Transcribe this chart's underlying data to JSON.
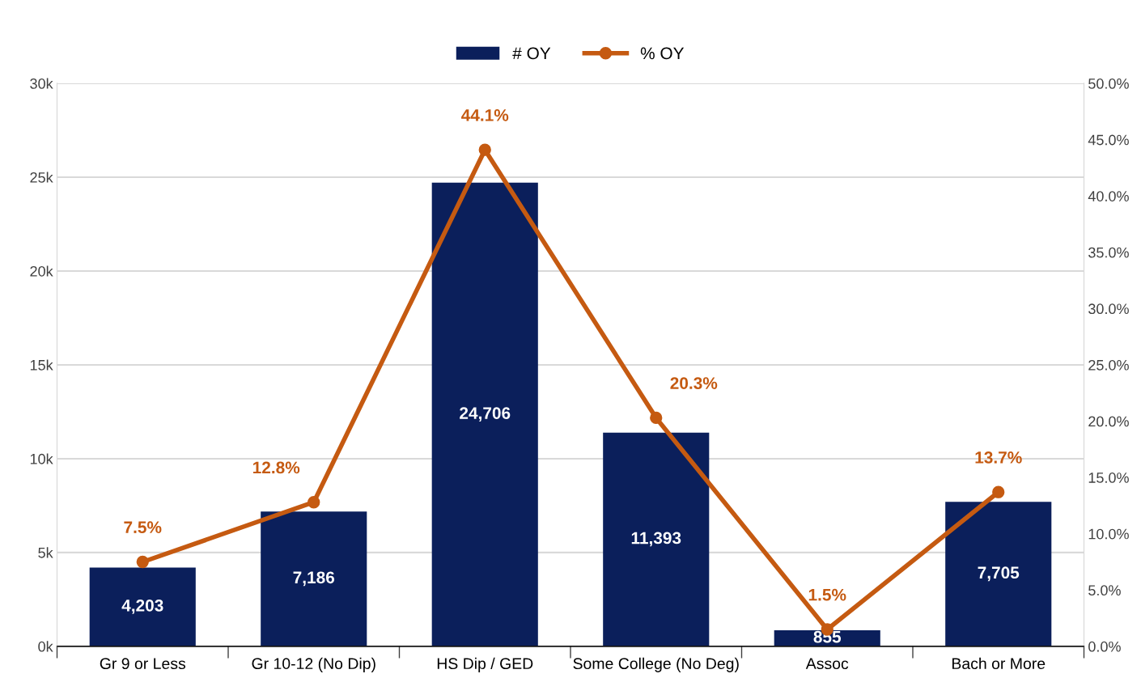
{
  "chart_data": {
    "type": "bar",
    "categories": [
      "Gr 9 or Less",
      "Gr 10-12 (No Dip)",
      "HS Dip / GED",
      "Some College (No Deg)",
      "Assoc",
      "Bach or More"
    ],
    "series": [
      {
        "name": "# OY",
        "color": "#0b1f5b",
        "values": [
          4203,
          7186,
          24706,
          11393,
          855,
          7705
        ],
        "value_labels": [
          "4,203",
          "7,186",
          "24,706",
          "11,393",
          "855",
          "7,705"
        ]
      },
      {
        "name": "% OY",
        "type": "line",
        "axis": "y2",
        "color": "#c55a11",
        "marker": "circle",
        "values": [
          7.5,
          12.8,
          44.1,
          20.3,
          1.5,
          13.7
        ],
        "value_labels": [
          "7.5%",
          "12.8%",
          "44.1%",
          "20.3%",
          "1.5%",
          "13.7%"
        ]
      }
    ],
    "ylim": [
      0,
      30000
    ],
    "yticks": [
      {
        "value": 0,
        "label": "0k"
      },
      {
        "value": 5000,
        "label": "5k"
      },
      {
        "value": 10000,
        "label": "10k"
      },
      {
        "value": 15000,
        "label": "15k"
      },
      {
        "value": 20000,
        "label": "20k"
      },
      {
        "value": 25000,
        "label": "25k"
      },
      {
        "value": 30000,
        "label": "30k"
      }
    ],
    "y2lim": [
      0,
      50
    ],
    "y2ticks": [
      {
        "value": 0,
        "label": "0.0%"
      },
      {
        "value": 5,
        "label": "5.0%"
      },
      {
        "value": 10,
        "label": "10.0%"
      },
      {
        "value": 15,
        "label": "15.0%"
      },
      {
        "value": 20,
        "label": "20.0%"
      },
      {
        "value": 25,
        "label": "25.0%"
      },
      {
        "value": 30,
        "label": "30.0%"
      },
      {
        "value": 35,
        "label": "35.0%"
      },
      {
        "value": 40,
        "label": "40.0%"
      },
      {
        "value": 45,
        "label": "45.0%"
      },
      {
        "value": 50,
        "label": "50.0%"
      }
    ],
    "grid": "y",
    "legend": "top"
  }
}
